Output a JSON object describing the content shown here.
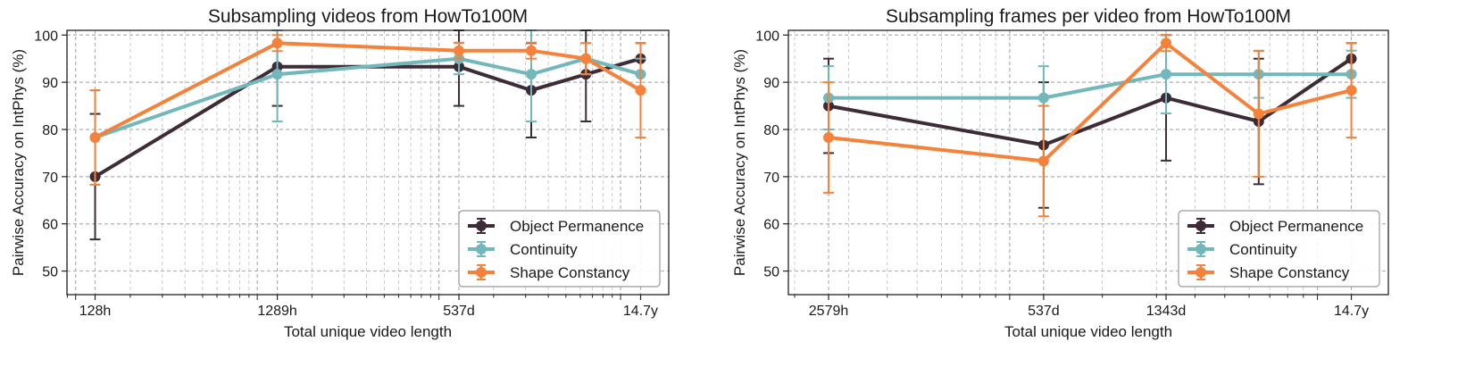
{
  "colors": {
    "object_permanence": "#3d2b35",
    "continuity": "#72b7bc",
    "shape_constancy": "#f5823a",
    "grid": "#b0b0b0"
  },
  "chart_data": [
    {
      "type": "line",
      "title": "Subsampling videos from HowTo100M",
      "xlabel": "Total unique video length",
      "ylabel": "Pairwise Accuracy on IntPhys (%)",
      "x_scale": "log",
      "x_ticks": [
        {
          "value": 128,
          "label": "128h"
        },
        {
          "value": 1289,
          "label": "1289h"
        },
        {
          "value": 12888,
          "label": "537d"
        },
        {
          "value": 128880,
          "label": "14.7y"
        }
      ],
      "x": [
        128,
        1289,
        12888,
        32221,
        64442,
        128880
      ],
      "xlim": [
        89.6,
        184112
      ],
      "ylim": [
        45,
        101
      ],
      "yticks": [
        50,
        60,
        70,
        80,
        90,
        100
      ],
      "grid": true,
      "legend_position": "bottom-right",
      "series": [
        {
          "name": "Object Permanence",
          "color_key": "object_permanence",
          "values": [
            70.0,
            93.3,
            93.3,
            88.3,
            91.7,
            95.0
          ],
          "err": [
            13.3,
            8.3,
            8.3,
            10.0,
            10.0,
            3.3
          ]
        },
        {
          "name": "Continuity",
          "color_key": "continuity",
          "values": [
            78.3,
            91.7,
            95.0,
            91.7,
            95.0,
            91.7
          ],
          "err": [
            10.0,
            10.0,
            3.3,
            10.0,
            3.3,
            3.3
          ]
        },
        {
          "name": "Shape Constancy",
          "color_key": "shape_constancy",
          "values": [
            78.3,
            98.3,
            96.7,
            96.7,
            95.0,
            88.3
          ],
          "err": [
            10.0,
            1.7,
            1.7,
            1.7,
            3.3,
            10.0
          ]
        }
      ]
    },
    {
      "type": "line",
      "title": "Subsampling frames per video from HowTo100M",
      "xlabel": "Total unique video length",
      "ylabel": "Pairwise Accuracy on IntPhys (%)",
      "x_scale": "log",
      "x_ticks": [
        {
          "value": 2579,
          "label": "2579h"
        },
        {
          "value": 12888,
          "label": "537d"
        },
        {
          "value": 32221,
          "label": "1343d"
        },
        {
          "value": 128880,
          "label": "14.7y"
        }
      ],
      "x": [
        2579,
        12888,
        32221,
        64442,
        128880
      ],
      "xlim": [
        1909,
        170000
      ],
      "ylim": [
        45,
        101
      ],
      "yticks": [
        50,
        60,
        70,
        80,
        90,
        100
      ],
      "grid": true,
      "legend_position": "bottom-right",
      "series": [
        {
          "name": "Object Permanence",
          "color_key": "object_permanence",
          "values": [
            85.0,
            76.7,
            86.7,
            81.7,
            95.0
          ],
          "err": [
            10.0,
            13.3,
            13.3,
            13.3,
            3.3
          ]
        },
        {
          "name": "Continuity",
          "color_key": "continuity",
          "values": [
            86.7,
            86.7,
            91.7,
            91.7,
            91.7
          ],
          "err": [
            6.7,
            6.7,
            8.3,
            5.0,
            5.0
          ]
        },
        {
          "name": "Shape Constancy",
          "color_key": "shape_constancy",
          "values": [
            78.3,
            73.3,
            98.3,
            83.3,
            88.3
          ],
          "err": [
            11.7,
            11.7,
            1.7,
            13.3,
            10.0
          ]
        }
      ]
    }
  ]
}
